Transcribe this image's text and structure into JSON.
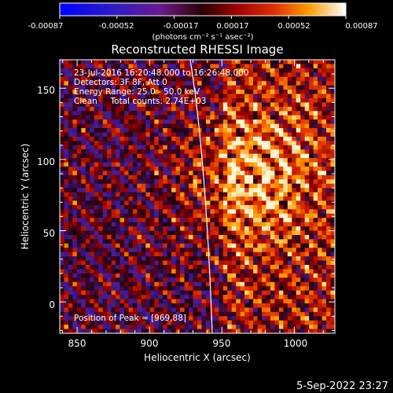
{
  "colorbar": {
    "tick_labels": [
      "-0.00087",
      "-0.00052",
      "-0.00017",
      "0.00017",
      "0.00052",
      "0.00087"
    ],
    "units_label": "(photons cm⁻² s⁻¹ asec⁻²)",
    "range": [
      -0.00087,
      0.00087
    ]
  },
  "plot": {
    "title": "Reconstructed RHESSI Image",
    "xlabel": "Heliocentric X (arcsec)",
    "ylabel": "Heliocentric Y (arcsec)",
    "x_tick_labels": [
      "850",
      "900",
      "950",
      "1000"
    ],
    "y_tick_labels": [
      "0",
      "50",
      "100",
      "150"
    ],
    "xlim": [
      838,
      1028
    ],
    "ylim": [
      -22,
      170
    ],
    "info_lines": [
      "23-Jul-2016 16:20:48.000 to 16:26:48.000",
      "Detectors: 3F 8F, Att 0",
      "Energy Range: 25.0 - 50.0 keV",
      "Clean     Total counts: 2.74E+03"
    ],
    "peak_text": "Position of Peak = [969,88]",
    "peak_position": [
      969,
      88
    ]
  },
  "footer": {
    "date": "5-Sep-2022 23:27"
  }
}
